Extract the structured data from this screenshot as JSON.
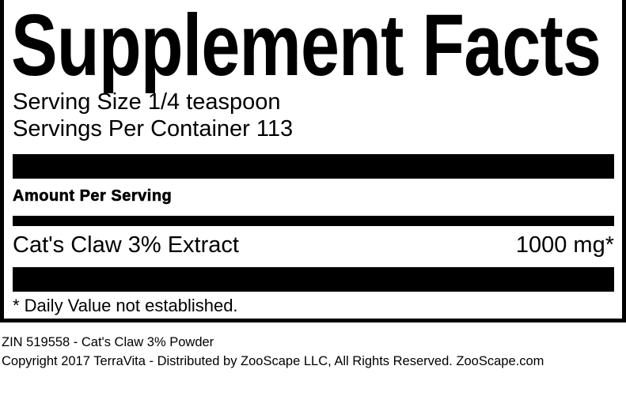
{
  "title": "Supplement Facts",
  "serving_size": "Serving Size 1/4 teaspoon",
  "servings_per_container": "Servings Per Container 113",
  "amount_header": "Amount Per Serving",
  "ingredients": [
    {
      "name": "Cat's Claw 3% Extract",
      "amount": "1000 mg*"
    }
  ],
  "footnote": "* Daily Value not established.",
  "product_line": "ZIN 519558 - Cat's Claw 3% Powder",
  "copyright": "Copyright 2017 TerraVita - Distributed by ZooScape LLC, All Rights Reserved. ZooScape.com"
}
